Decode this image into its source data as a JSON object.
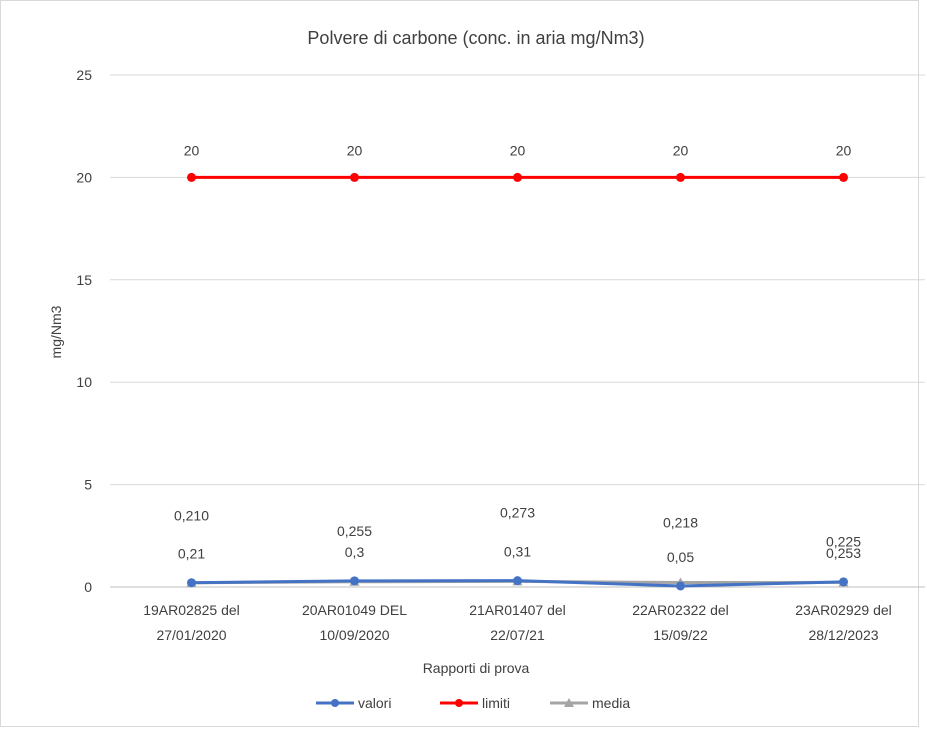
{
  "chart_data": {
    "type": "line",
    "title": "Polvere di carbone (conc. in aria mg/Nm3)",
    "xlabel": "Rapporti di prova",
    "ylabel": "mg/Nm3",
    "ylim": [
      0,
      25
    ],
    "yticks": [
      "0",
      "5",
      "10",
      "15",
      "20",
      "25"
    ],
    "grid": true,
    "legend_position": "bottom",
    "categories": [
      [
        "19AR02825 del",
        "27/01/2020"
      ],
      [
        "20AR01049 DEL",
        "10/09/2020"
      ],
      [
        "21AR01407 del",
        "22/07/21"
      ],
      [
        "22AR02322 del",
        "15/09/22"
      ],
      [
        "23AR02929 del",
        "28/12/2023"
      ]
    ],
    "series": [
      {
        "name": "valori",
        "color": "#4472c4",
        "marker": "circle",
        "values": [
          0.21,
          0.3,
          0.31,
          0.05,
          0.253
        ],
        "labels": [
          "0,21",
          "0,3",
          "0,31",
          "0,05",
          "0,253"
        ]
      },
      {
        "name": "limiti",
        "color": "#ff0000",
        "marker": "circle",
        "values": [
          20,
          20,
          20,
          20,
          20
        ],
        "labels": [
          "20",
          "20",
          "20",
          "20",
          "20"
        ]
      },
      {
        "name": "media",
        "color": "#a5a5a5",
        "marker": "triangle",
        "values": [
          0.21,
          0.255,
          0.273,
          0.218,
          0.225
        ],
        "labels": [
          "0,210",
          "0,255",
          "0,273",
          "0,218",
          "0,225"
        ]
      }
    ]
  }
}
